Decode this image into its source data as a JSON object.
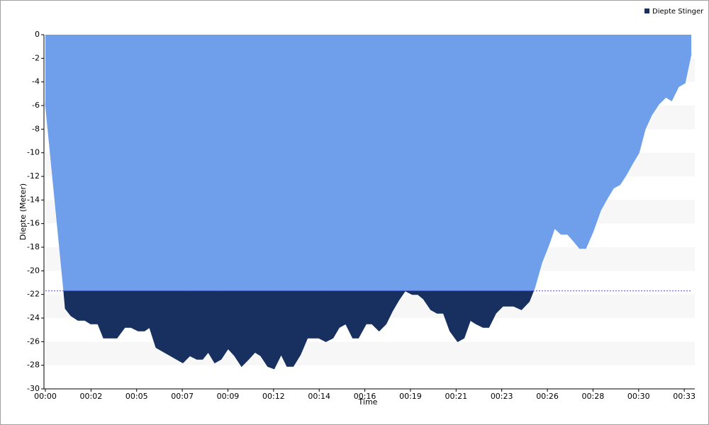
{
  "chart_data": {
    "type": "area",
    "x_label": "Time",
    "y_label": "Diepte (Meter)",
    "x": [
      0,
      0.94,
      1.02,
      1.31,
      1.67,
      2.03,
      2.32,
      2.69,
      2.98,
      3.67,
      4.07,
      4.39,
      4.76,
      5.08,
      5.34,
      5.67,
      7.05,
      7.41,
      7.77,
      8.06,
      8.35,
      8.68,
      9.01,
      9.37,
      9.7,
      10.06,
      10.42,
      10.75,
      11.04,
      11.4,
      11.73,
      12.09,
      12.39,
      12.71,
      13.08,
      13.44,
      14.02,
      14.38,
      14.75,
      15.07,
      15.4,
      15.76,
      16.05,
      16.45,
      16.74,
      17.11,
      17.47,
      17.8,
      18.12,
      18.45,
      18.81,
      19.1,
      19.39,
      19.76,
      20.08,
      20.41,
      20.74,
      21.14,
      21.47,
      21.79,
      22.08,
      22.45,
      22.74,
      23.1,
      23.46,
      24.01,
      24.41,
      24.81,
      25.1,
      25.46,
      25.82,
      26.11,
      26.44,
      26.77,
      27.09,
      27.39,
      27.71,
      28.08,
      28.47,
      28.8,
      29.13,
      29.46,
      29.78,
      30.11,
      30.44,
      30.76,
      31.09,
      31.45,
      31.82,
      32.11,
      32.47,
      32.8,
      33.12
    ],
    "series": [
      {
        "name": "Diepte Stinger",
        "color": "#6f9fea",
        "values": [
          -5.8,
          -21.7,
          -23.2,
          -23.8,
          -24.2,
          -24.2,
          -24.5,
          -24.5,
          -25.7,
          -25.7,
          -24.8,
          -24.8,
          -25.1,
          -25.1,
          -24.8,
          -26.5,
          -27.8,
          -27.2,
          -27.5,
          -27.5,
          -26.9,
          -27.8,
          -27.5,
          -26.6,
          -27.2,
          -28.1,
          -27.5,
          -26.9,
          -27.2,
          -28.1,
          -28.3,
          -27.1,
          -28.1,
          -28.1,
          -27.1,
          -25.7,
          -25.7,
          -26,
          -25.7,
          -24.8,
          -24.5,
          -25.7,
          -25.7,
          -24.5,
          -24.5,
          -25.1,
          -24.5,
          -23.4,
          -22.5,
          -21.7,
          -22,
          -22,
          -22.4,
          -23.3,
          -23.6,
          -23.6,
          -25.1,
          -26,
          -25.7,
          -24.2,
          -24.5,
          -24.8,
          -24.8,
          -23.6,
          -23,
          -23,
          -23.3,
          -22.6,
          -21.4,
          -19.3,
          -17.8,
          -16.4,
          -16.9,
          -16.9,
          -17.5,
          -18.1,
          -18.1,
          -16.7,
          -14.9,
          -13.9,
          -13,
          -12.7,
          -11.9,
          -10.9,
          -10,
          -8,
          -6.8,
          -5.9,
          -5.3,
          -5.6,
          -4.4,
          -4.1,
          -1.6
        ]
      }
    ],
    "threshold": -21.7,
    "threshold_color": "#17305f",
    "xlim": [
      0,
      33.3
    ],
    "xticks": [
      {
        "value": 0,
        "label": "00:00"
      },
      {
        "value": 2.34,
        "label": "00:02"
      },
      {
        "value": 4.68,
        "label": "00:05"
      },
      {
        "value": 7.02,
        "label": "00:07"
      },
      {
        "value": 9.36,
        "label": "00:09"
      },
      {
        "value": 11.7,
        "label": "00:12"
      },
      {
        "value": 14.04,
        "label": "00:14"
      },
      {
        "value": 16.38,
        "label": "00:16"
      },
      {
        "value": 18.72,
        "label": "00:19"
      },
      {
        "value": 21.06,
        "label": "00:21"
      },
      {
        "value": 23.4,
        "label": "00:23"
      },
      {
        "value": 25.74,
        "label": "00:26"
      },
      {
        "value": 28.08,
        "label": "00:28"
      },
      {
        "value": 30.42,
        "label": "00:30"
      },
      {
        "value": 32.76,
        "label": "00:33"
      }
    ],
    "ylim": [
      -30,
      0
    ],
    "yticks": [
      0,
      -2,
      -4,
      -6,
      -8,
      -10,
      -12,
      -14,
      -16,
      -18,
      -20,
      -22,
      -24,
      -26,
      -28,
      -30
    ],
    "stripes": true,
    "legend": "top-right"
  }
}
